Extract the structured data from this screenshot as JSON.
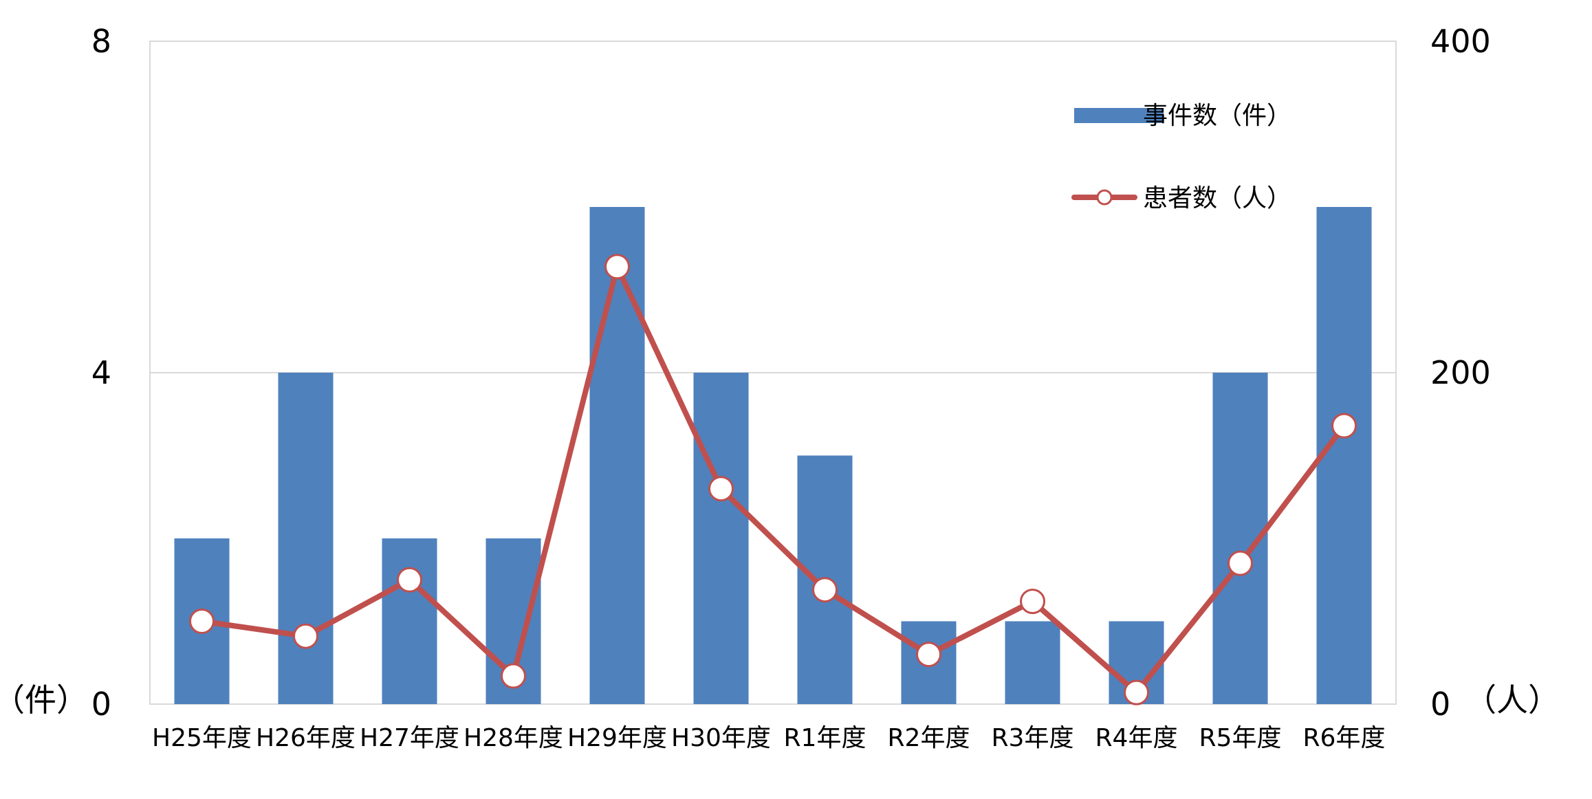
{
  "chart_data": {
    "type": "bar",
    "categories": [
      "H25年度",
      "H26年度",
      "H27年度",
      "H28年度",
      "H29年度",
      "H30年度",
      "R1年度",
      "R2年度",
      "R3年度",
      "R4年度",
      "R5年度",
      "R6年度"
    ],
    "series": [
      {
        "name": "事件数（件）",
        "type": "bar",
        "axis": "left",
        "color": "#4f81bd",
        "values": [
          2,
          4,
          2,
          2,
          6,
          4,
          3,
          1,
          1,
          1,
          4,
          6
        ]
      },
      {
        "name": "患者数（人）",
        "type": "line",
        "axis": "right",
        "color": "#c0504d",
        "marker": "circle-hollow",
        "values": [
          50,
          41,
          75,
          17,
          264,
          130,
          69,
          30,
          62,
          7,
          85,
          168
        ]
      }
    ],
    "y_left": {
      "range": [
        0,
        8
      ],
      "ticks": [
        "0",
        "4",
        "8"
      ],
      "unit_label": "（件）"
    },
    "y_right": {
      "range": [
        0,
        400
      ],
      "ticks": [
        "0",
        "200",
        "400"
      ],
      "unit_label": "（人）"
    },
    "grid": true,
    "legend": "top-right"
  }
}
